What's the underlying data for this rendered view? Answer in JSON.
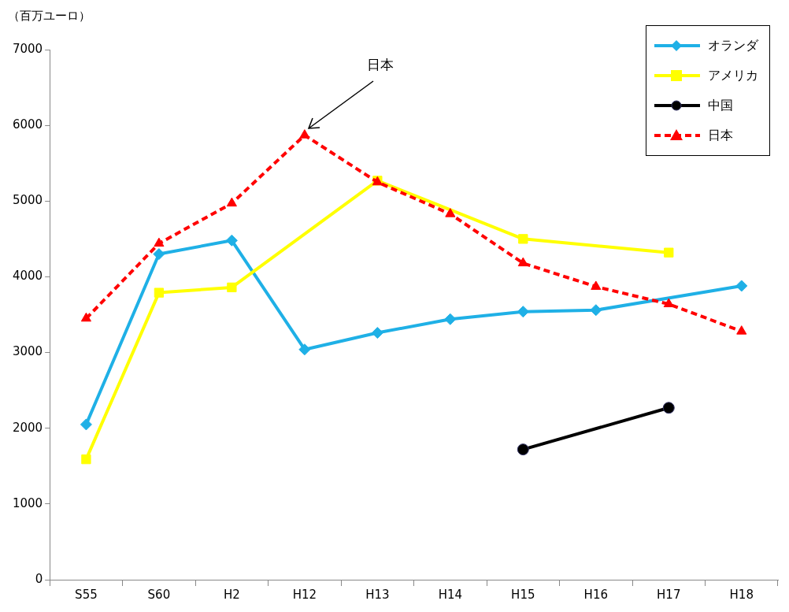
{
  "chart_data": {
    "type": "line",
    "ylabel": "（百万ユーロ）",
    "categories": [
      "S55",
      "S60",
      "H2",
      "H12",
      "H13",
      "H14",
      "H15",
      "H16",
      "H17",
      "H18"
    ],
    "ylim": [
      0,
      7000
    ],
    "yticks": [
      0,
      1000,
      2000,
      3000,
      4000,
      5000,
      6000,
      7000
    ],
    "grid": false,
    "legend": "top right",
    "series": [
      {
        "name": "オランダ",
        "color": "#1fb0e6",
        "marker": "diamond",
        "line_style": "solid",
        "values": [
          2050,
          4300,
          4480,
          3040,
          3260,
          3440,
          3540,
          3560,
          null,
          3880
        ]
      },
      {
        "name": "アメリカ",
        "color": "#ffff00",
        "marker": "square",
        "line_style": "solid",
        "values": [
          1590,
          3790,
          3860,
          null,
          5270,
          null,
          4500,
          null,
          4320,
          null
        ]
      },
      {
        "name": "中国",
        "color": "#000000",
        "marker": "circle",
        "line_style": "solid",
        "values": [
          null,
          null,
          null,
          null,
          null,
          null,
          1720,
          null,
          2270,
          null
        ]
      },
      {
        "name": "日本",
        "color": "#ff0000",
        "marker": "triangle",
        "line_style": "dashed",
        "values": [
          3450,
          4440,
          4970,
          5870,
          5250,
          4830,
          4180,
          3870,
          3640,
          3280
        ]
      }
    ],
    "annotations": [
      "日本"
    ]
  }
}
